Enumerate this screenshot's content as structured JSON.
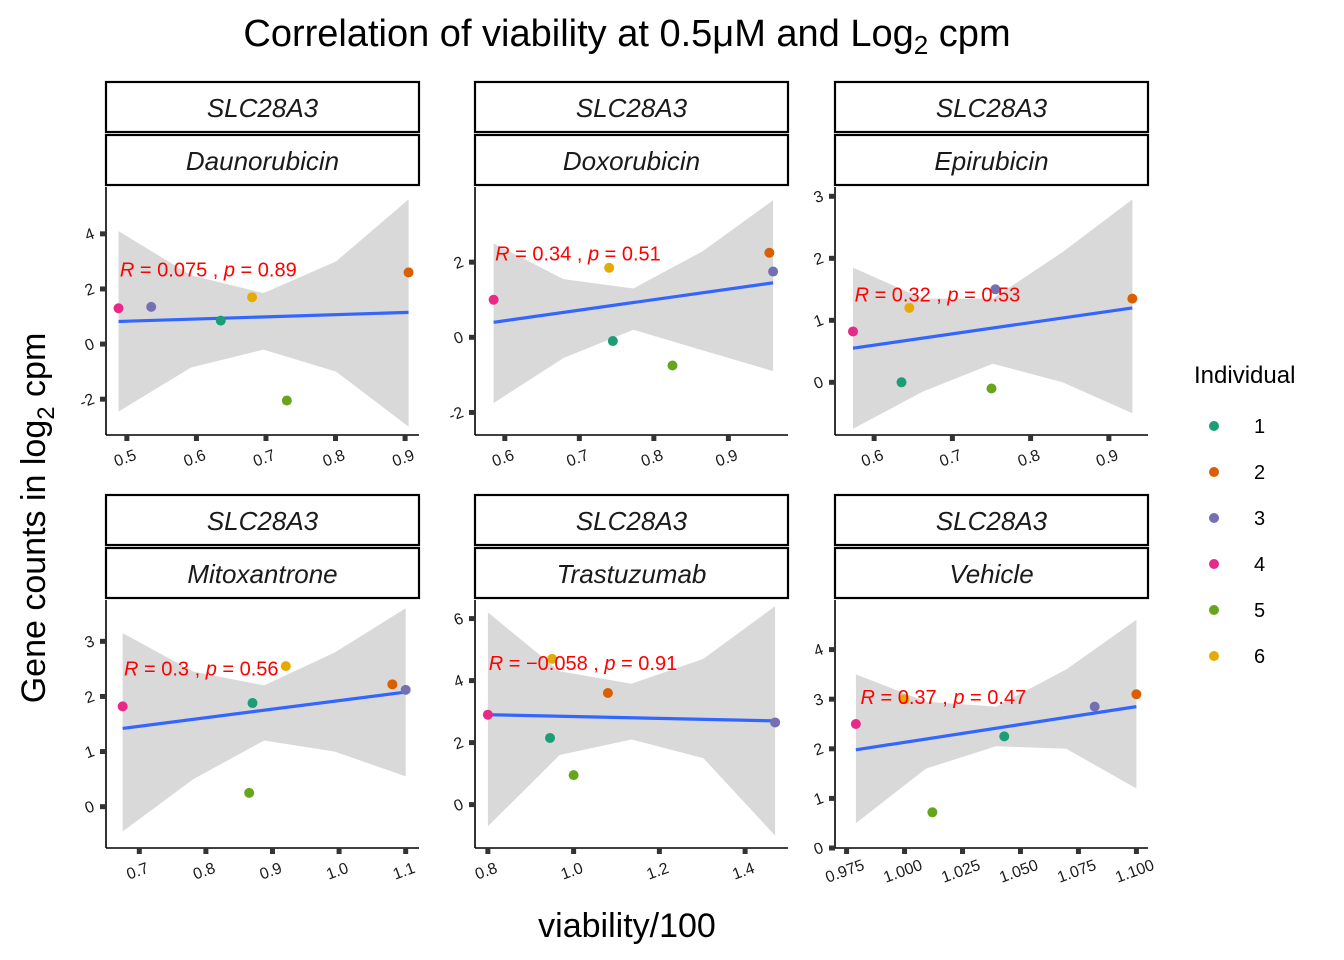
{
  "title_prefix": "Correlation of viability at 0.5",
  "title_mu": "μ",
  "title_mid": "M and Log",
  "title_sub": "2",
  "title_suffix": " cpm",
  "xlabel": "viability/100",
  "ylabel_main": "Gene counts in log",
  "ylabel_sub": "2",
  "ylabel_end": "  cpm",
  "legend": {
    "title": "Individual",
    "items": [
      {
        "label": "1",
        "color": "#1b9e77"
      },
      {
        "label": "2",
        "color": "#d95f02"
      },
      {
        "label": "3",
        "color": "#7570b3"
      },
      {
        "label": "4",
        "color": "#e7298a"
      },
      {
        "label": "5",
        "color": "#66a61e"
      },
      {
        "label": "6",
        "color": "#e6ab02"
      }
    ]
  },
  "colors": {
    "fit": "#3366ff",
    "ribbon": "#d9d9d9",
    "annotation": "#ff0000"
  },
  "chart_data": [
    {
      "type": "scatter",
      "gene": "SLC28A3",
      "drug": "Daunorubicin",
      "xlim": [
        0.47,
        0.92
      ],
      "ylim": [
        -3.3,
        5.7
      ],
      "xticks": [
        0.5,
        0.6,
        0.7,
        0.8,
        0.9
      ],
      "xtick_labels": [
        "0.5",
        "0.6",
        "0.7",
        "0.8",
        "0.9"
      ],
      "yticks": [
        -2,
        0,
        2,
        4
      ],
      "ytick_labels": [
        "-2",
        "0",
        "2",
        "4"
      ],
      "points": [
        {
          "individual": "1",
          "x": 0.635,
          "y": 0.85
        },
        {
          "individual": "2",
          "x": 0.905,
          "y": 2.6
        },
        {
          "individual": "3",
          "x": 0.535,
          "y": 1.35
        },
        {
          "individual": "4",
          "x": 0.488,
          "y": 1.3
        },
        {
          "individual": "5",
          "x": 0.73,
          "y": -2.05
        },
        {
          "individual": "6",
          "x": 0.68,
          "y": 1.7
        }
      ],
      "fit": {
        "x": [
          0.488,
          0.905
        ],
        "y": [
          0.82,
          1.15
        ]
      },
      "band_top": [
        4.1,
        2.5,
        1.85,
        3.0,
        5.25
      ],
      "band_bottom": [
        -2.45,
        -0.85,
        -0.2,
        -1.0,
        -3.0
      ],
      "r_value": "0.075",
      "p_value": "0.89",
      "annot_x": 0.49,
      "annot_y": 2.45
    },
    {
      "type": "scatter",
      "gene": "SLC28A3",
      "drug": "Doxorubicin",
      "xlim": [
        0.56,
        0.98
      ],
      "ylim": [
        -2.6,
        4.0
      ],
      "xticks": [
        0.6,
        0.7,
        0.8,
        0.9
      ],
      "xtick_labels": [
        "0.6",
        "0.7",
        "0.8",
        "0.9"
      ],
      "yticks": [
        -2,
        0,
        2
      ],
      "ytick_labels": [
        "-2",
        "0",
        "2"
      ],
      "points": [
        {
          "individual": "1",
          "x": 0.745,
          "y": -0.1
        },
        {
          "individual": "2",
          "x": 0.955,
          "y": 2.25
        },
        {
          "individual": "3",
          "x": 0.96,
          "y": 1.75
        },
        {
          "individual": "4",
          "x": 0.585,
          "y": 1.0
        },
        {
          "individual": "5",
          "x": 0.825,
          "y": -0.75
        },
        {
          "individual": "6",
          "x": 0.74,
          "y": 1.85
        }
      ],
      "fit": {
        "x": [
          0.585,
          0.96
        ],
        "y": [
          0.4,
          1.45
        ]
      },
      "band_top": [
        2.5,
        1.55,
        1.3,
        2.3,
        3.65
      ],
      "band_bottom": [
        -1.75,
        -0.55,
        0.2,
        -0.35,
        -0.9
      ],
      "r_value": "0.34",
      "p_value": "0.51",
      "annot_x": 0.587,
      "annot_y": 2.05
    },
    {
      "type": "scatter",
      "gene": "SLC28A3",
      "drug": "Epirubicin",
      "xlim": [
        0.55,
        0.95
      ],
      "ylim": [
        -0.85,
        3.15
      ],
      "xticks": [
        0.6,
        0.7,
        0.8,
        0.9
      ],
      "xtick_labels": [
        "0.6",
        "0.7",
        "0.8",
        "0.9"
      ],
      "yticks": [
        0,
        1,
        2,
        3
      ],
      "ytick_labels": [
        "0",
        "1",
        "2",
        "3"
      ],
      "points": [
        {
          "individual": "1",
          "x": 0.635,
          "y": 0.0
        },
        {
          "individual": "2",
          "x": 0.93,
          "y": 1.35
        },
        {
          "individual": "3",
          "x": 0.755,
          "y": 1.5
        },
        {
          "individual": "4",
          "x": 0.573,
          "y": 0.82
        },
        {
          "individual": "5",
          "x": 0.75,
          "y": -0.1
        },
        {
          "individual": "6",
          "x": 0.645,
          "y": 1.2
        }
      ],
      "fit": {
        "x": [
          0.573,
          0.93
        ],
        "y": [
          0.55,
          1.2
        ]
      },
      "band_top": [
        1.85,
        1.35,
        1.35,
        2.1,
        2.95
      ],
      "band_bottom": [
        -0.75,
        -0.15,
        0.3,
        0.0,
        -0.5
      ],
      "r_value": "0.32",
      "p_value": "0.53",
      "annot_x": 0.575,
      "annot_y": 1.3
    },
    {
      "type": "scatter",
      "gene": "SLC28A3",
      "drug": "Mitoxantrone",
      "xlim": [
        0.65,
        1.12
      ],
      "ylim": [
        -0.75,
        3.75
      ],
      "xticks": [
        0.7,
        0.8,
        0.9,
        1.0,
        1.1
      ],
      "xtick_labels": [
        "0.7",
        "0.8",
        "0.9",
        "1.0",
        "1.1"
      ],
      "yticks": [
        0,
        1,
        2,
        3
      ],
      "ytick_labels": [
        "0",
        "1",
        "2",
        "3"
      ],
      "points": [
        {
          "individual": "1",
          "x": 0.87,
          "y": 1.88
        },
        {
          "individual": "2",
          "x": 1.08,
          "y": 2.22
        },
        {
          "individual": "3",
          "x": 1.1,
          "y": 2.12
        },
        {
          "individual": "4",
          "x": 0.675,
          "y": 1.82
        },
        {
          "individual": "5",
          "x": 0.865,
          "y": 0.25
        },
        {
          "individual": "6",
          "x": 0.92,
          "y": 2.55
        }
      ],
      "fit": {
        "x": [
          0.675,
          1.1
        ],
        "y": [
          1.42,
          2.08
        ]
      },
      "band_top": [
        3.15,
        2.45,
        2.2,
        2.8,
        3.6
      ],
      "band_bottom": [
        -0.45,
        0.5,
        1.2,
        1.0,
        0.55
      ],
      "r_value": "0.3",
      "p_value": "0.56",
      "annot_x": 0.677,
      "annot_y": 2.38
    },
    {
      "type": "scatter",
      "gene": "SLC28A3",
      "drug": "Trastuzumab",
      "xlim": [
        0.77,
        1.5
      ],
      "ylim": [
        -1.4,
        6.6
      ],
      "xticks": [
        0.8,
        1.0,
        1.2,
        1.4
      ],
      "xtick_labels": [
        "0.8",
        "1.0",
        "1.2",
        "1.4"
      ],
      "yticks": [
        0,
        2,
        4,
        6
      ],
      "ytick_labels": [
        "0",
        "2",
        "4",
        "6"
      ],
      "points": [
        {
          "individual": "1",
          "x": 0.945,
          "y": 2.15
        },
        {
          "individual": "2",
          "x": 1.08,
          "y": 3.6
        },
        {
          "individual": "3",
          "x": 1.47,
          "y": 2.65
        },
        {
          "individual": "4",
          "x": 0.8,
          "y": 2.9
        },
        {
          "individual": "5",
          "x": 1.0,
          "y": 0.95
        },
        {
          "individual": "6",
          "x": 0.95,
          "y": 4.7
        }
      ],
      "fit": {
        "x": [
          0.8,
          1.47
        ],
        "y": [
          2.9,
          2.7
        ]
      },
      "band_top": [
        6.2,
        4.3,
        3.9,
        4.7,
        6.4
      ],
      "band_bottom": [
        -0.7,
        1.6,
        2.1,
        1.5,
        -1.0
      ],
      "r_value": "−0.058",
      "p_value": "0.91",
      "annot_x": 0.802,
      "annot_y": 4.35
    },
    {
      "type": "scatter",
      "gene": "SLC28A3",
      "drug": "Vehicle",
      "xlim": [
        0.97,
        1.105
      ],
      "ylim": [
        0.0,
        5.0
      ],
      "xticks": [
        0.975,
        1.0,
        1.025,
        1.05,
        1.075,
        1.1
      ],
      "xtick_labels": [
        "0.975",
        "1.000",
        "1.025",
        "1.050",
        "1.075",
        "1.100"
      ],
      "yticks": [
        0,
        1,
        2,
        3,
        4
      ],
      "ytick_labels": [
        "0",
        "1",
        "2",
        "3",
        "4"
      ],
      "points": [
        {
          "individual": "1",
          "x": 1.043,
          "y": 2.25
        },
        {
          "individual": "2",
          "x": 1.1,
          "y": 3.1
        },
        {
          "individual": "3",
          "x": 1.082,
          "y": 2.85
        },
        {
          "individual": "4",
          "x": 0.979,
          "y": 2.5
        },
        {
          "individual": "5",
          "x": 1.012,
          "y": 0.72
        },
        {
          "individual": "6",
          "x": 1.0,
          "y": 3.0
        }
      ],
      "fit": {
        "x": [
          0.979,
          1.1
        ],
        "y": [
          1.98,
          2.85
        ]
      },
      "band_top": [
        3.5,
        2.95,
        2.85,
        3.6,
        4.6
      ],
      "band_bottom": [
        0.5,
        1.6,
        2.05,
        2.0,
        1.2
      ],
      "r_value": "0.37",
      "p_value": "0.47",
      "annot_x": 0.981,
      "annot_y": 2.9
    }
  ]
}
